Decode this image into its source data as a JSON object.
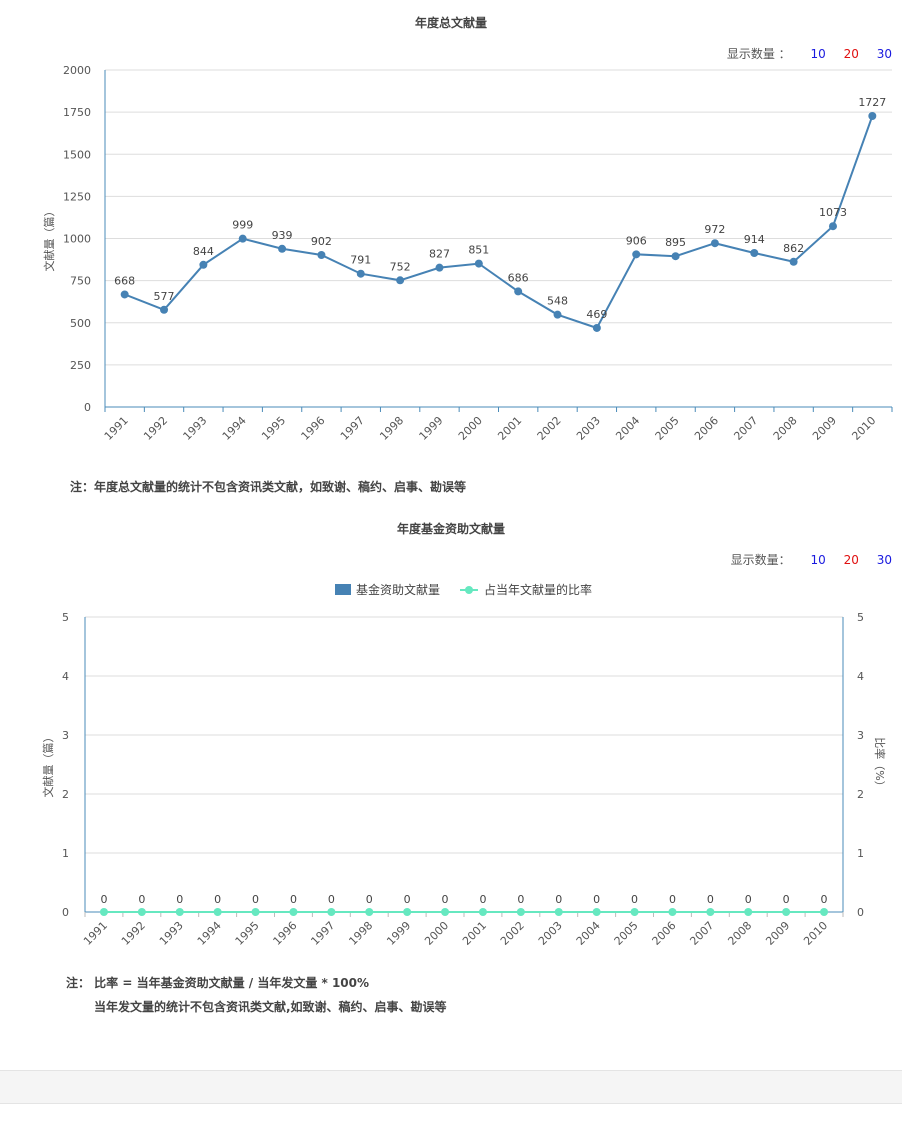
{
  "chart1": {
    "controls": {
      "label": "显示数量 ：",
      "opt10": "10",
      "opt20": "20",
      "opt30": "30"
    },
    "note": "注：年度总文献量的统计不包含资讯类文献，如致谢、稿约、启事、勘误等"
  },
  "chart2": {
    "controls": {
      "label": "显示数量：",
      "opt10": "10",
      "opt20": "20",
      "opt30": "30"
    },
    "note_line1": "注： 比率 = 当年基金资助文献量 / 当年发文量 * 100%",
    "note_line2": "当年发文量的统计不包含资讯类文献,如致谢、稿约、启事、勘误等"
  },
  "chart_data": [
    {
      "type": "line",
      "title": "年度总文献量",
      "xlabel": "",
      "ylabel": "文献量（篇）",
      "categories": [
        "1991",
        "1992",
        "1993",
        "1994",
        "1995",
        "1996",
        "1997",
        "1998",
        "1999",
        "2000",
        "2001",
        "2002",
        "2003",
        "2004",
        "2005",
        "2006",
        "2007",
        "2008",
        "2009",
        "2010"
      ],
      "values": [
        668,
        577,
        844,
        999,
        939,
        902,
        791,
        752,
        827,
        851,
        686,
        548,
        469,
        906,
        895,
        972,
        914,
        862,
        1073,
        1727
      ],
      "ylim": [
        0,
        2000
      ],
      "yticks": [
        0,
        250,
        500,
        750,
        1000,
        1250,
        1500,
        1750,
        2000
      ],
      "grid": true,
      "color": "#4682b4"
    },
    {
      "type": "bar",
      "title": "年度基金资助文献量",
      "xlabel": "",
      "ylabel": "文献量（篇）",
      "y2label": "比率（%）",
      "categories": [
        "1991",
        "1992",
        "1993",
        "1994",
        "1995",
        "1996",
        "1997",
        "1998",
        "1999",
        "2000",
        "2001",
        "2002",
        "2003",
        "2004",
        "2005",
        "2006",
        "2007",
        "2008",
        "2009",
        "2010"
      ],
      "series": [
        {
          "name": "基金资助文献量",
          "kind": "bar",
          "color": "#4682b4",
          "values": [
            0,
            0,
            0,
            0,
            0,
            0,
            0,
            0,
            0,
            0,
            0,
            0,
            0,
            0,
            0,
            0,
            0,
            0,
            0,
            0
          ]
        },
        {
          "name": "占当年文献量的比率",
          "kind": "line",
          "color": "#66e8c0",
          "values": [
            0,
            0,
            0,
            0,
            0,
            0,
            0,
            0,
            0,
            0,
            0,
            0,
            0,
            0,
            0,
            0,
            0,
            0,
            0,
            0
          ]
        }
      ],
      "ylim": [
        0,
        5
      ],
      "y2lim": [
        0,
        5
      ],
      "yticks": [
        0,
        1,
        2,
        3,
        4,
        5
      ],
      "grid": true,
      "legend": "top-center"
    }
  ]
}
